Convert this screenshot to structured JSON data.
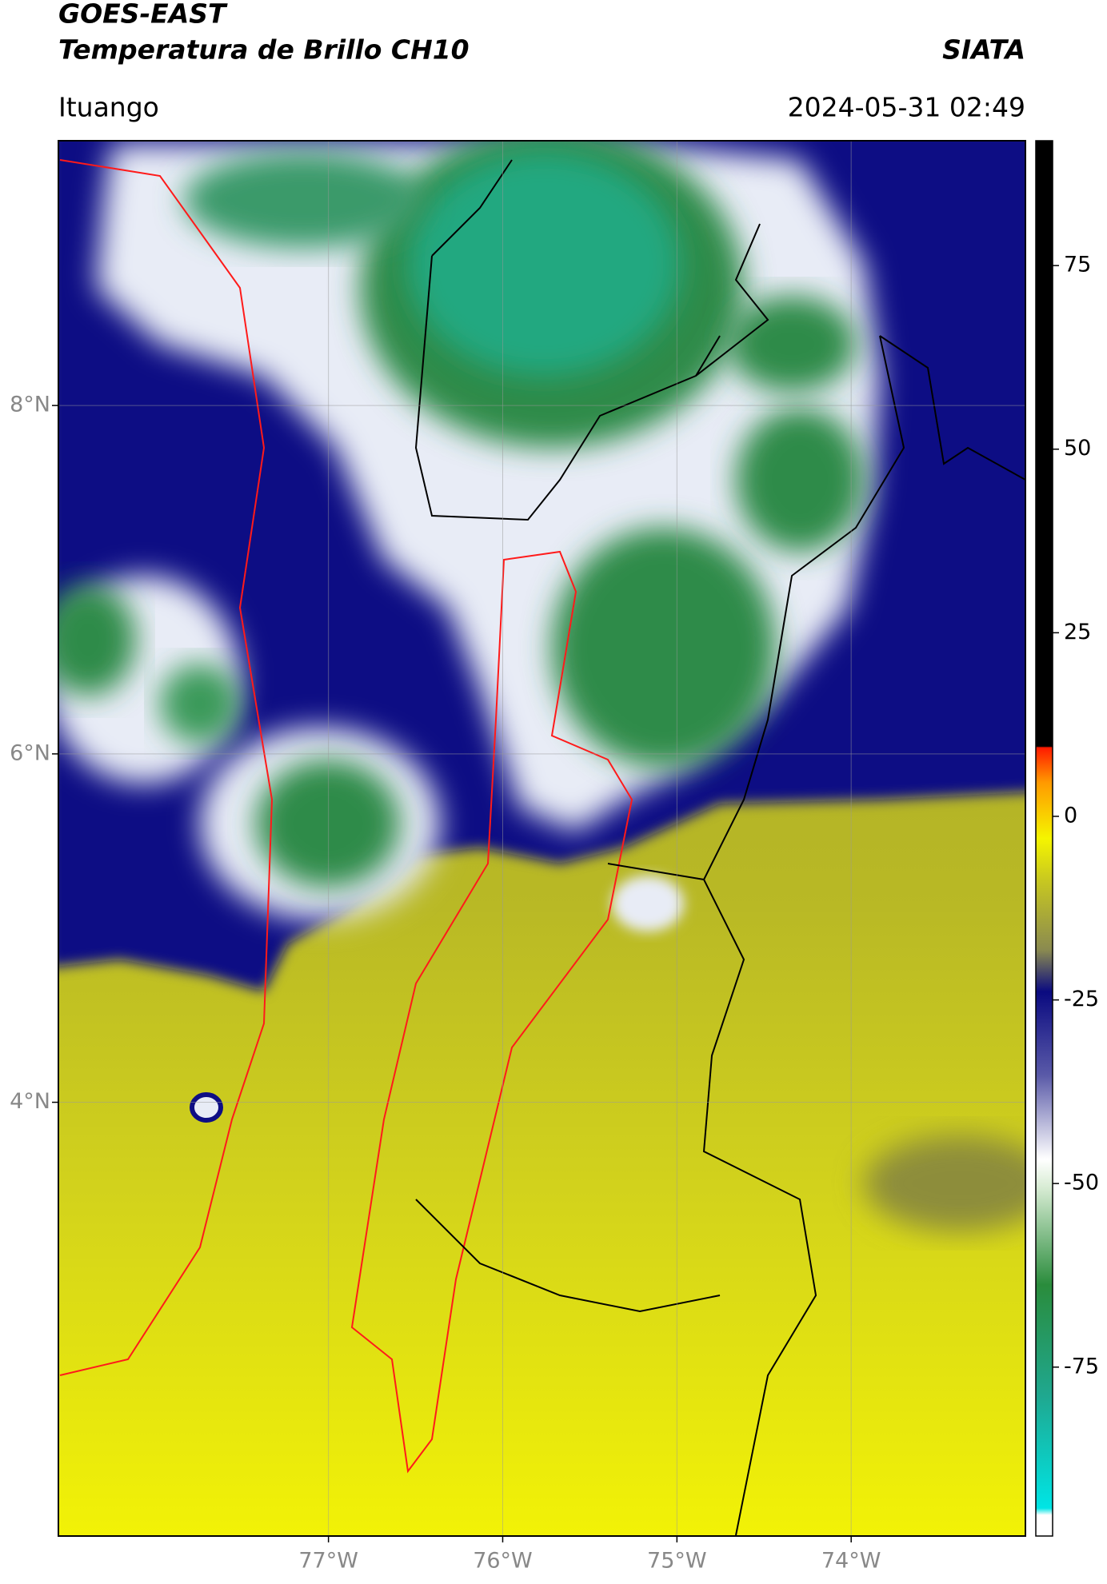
{
  "header": {
    "title": "GOES-EAST",
    "subtitle": "Temperatura de Brillo CH10",
    "brand": "SIATA",
    "location": "Ituango",
    "datetime": "2024-05-31 02:49"
  },
  "map": {
    "xlim": [
      -78.55,
      -73.0
    ],
    "ylim": [
      1.51,
      9.52
    ],
    "xticks": [
      {
        "value": -77,
        "label": "77°W"
      },
      {
        "value": -76,
        "label": "76°W"
      },
      {
        "value": -75,
        "label": "75°W"
      },
      {
        "value": -74,
        "label": "74°W"
      }
    ],
    "yticks": [
      {
        "value": 8,
        "label": "8°N"
      },
      {
        "value": 6,
        "label": "6°N"
      },
      {
        "value": 4,
        "label": "4°N"
      }
    ],
    "grid": true
  },
  "colorbar": {
    "lim": [
      -98,
      92
    ],
    "ticks": [
      75,
      50,
      25,
      0,
      -25,
      -50,
      -75
    ]
  }
}
